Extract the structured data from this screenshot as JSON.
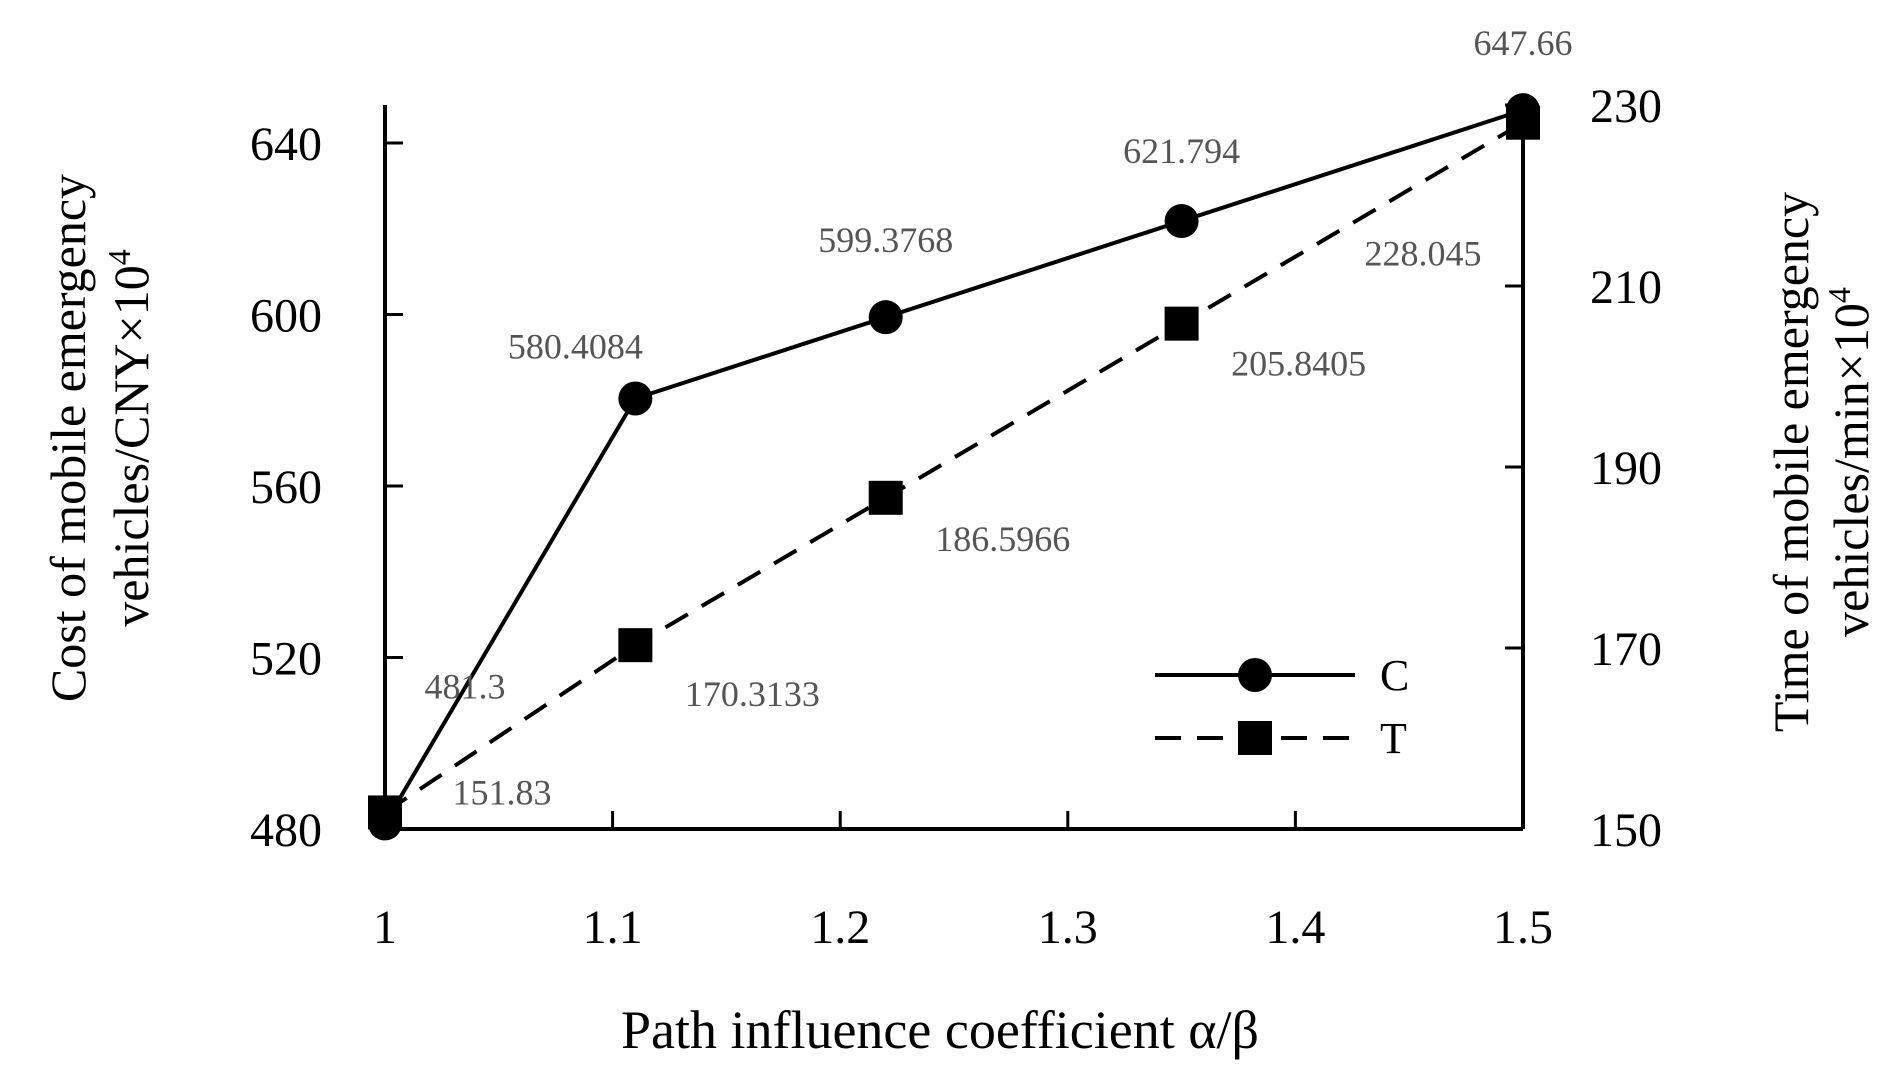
{
  "chart_data": {
    "type": "line",
    "x": [
      1,
      1.11,
      1.22,
      1.35,
      1.5
    ],
    "xlabel": "Path influence  coefficient  α/β",
    "xlim": [
      1,
      1.5
    ],
    "xticks": [
      "1",
      "1.1",
      "1.2",
      "1.3",
      "1.4",
      "1.5"
    ],
    "xtick_values": [
      1,
      1.1,
      1.2,
      1.3,
      1.4,
      1.5
    ],
    "y_left": {
      "label_line1": "Cost of mobile emergency",
      "label_line2": "vehicles/CNY×10",
      "label_sup": "4",
      "lim": [
        480,
        648
      ],
      "ticks": [
        "480",
        "520",
        "560",
        "600",
        "640"
      ],
      "tick_values": [
        480,
        520,
        560,
        600,
        640
      ]
    },
    "y_right": {
      "label_line1": "Time of mobile emergency",
      "label_line2": "vehicles/min×10",
      "label_sup": "4",
      "lim": [
        150,
        231
      ],
      "ticks": [
        "150",
        "170",
        "190",
        "210",
        "230"
      ],
      "tick_values": [
        150,
        170,
        190,
        210,
        230
      ]
    },
    "series": [
      {
        "name": "C",
        "axis": "left",
        "line_style": "solid",
        "marker": "circle",
        "values": [
          481.3,
          580.4084,
          599.3768,
          621.794,
          647.66
        ],
        "labels": [
          "481.3",
          "580.4084",
          "599.3768",
          "621.794",
          "647.66"
        ]
      },
      {
        "name": "T",
        "axis": "right",
        "line_style": "dashed",
        "marker": "square",
        "values": [
          151.83,
          170.3133,
          186.5966,
          205.8405,
          228.045
        ],
        "labels": [
          "151.83",
          "170.3133",
          "186.5966",
          "205.8405",
          "228.045"
        ]
      }
    ],
    "legend_position": "bottom-right",
    "grid": false,
    "colors": {
      "lines": "#000000",
      "labels": "#555555"
    }
  }
}
